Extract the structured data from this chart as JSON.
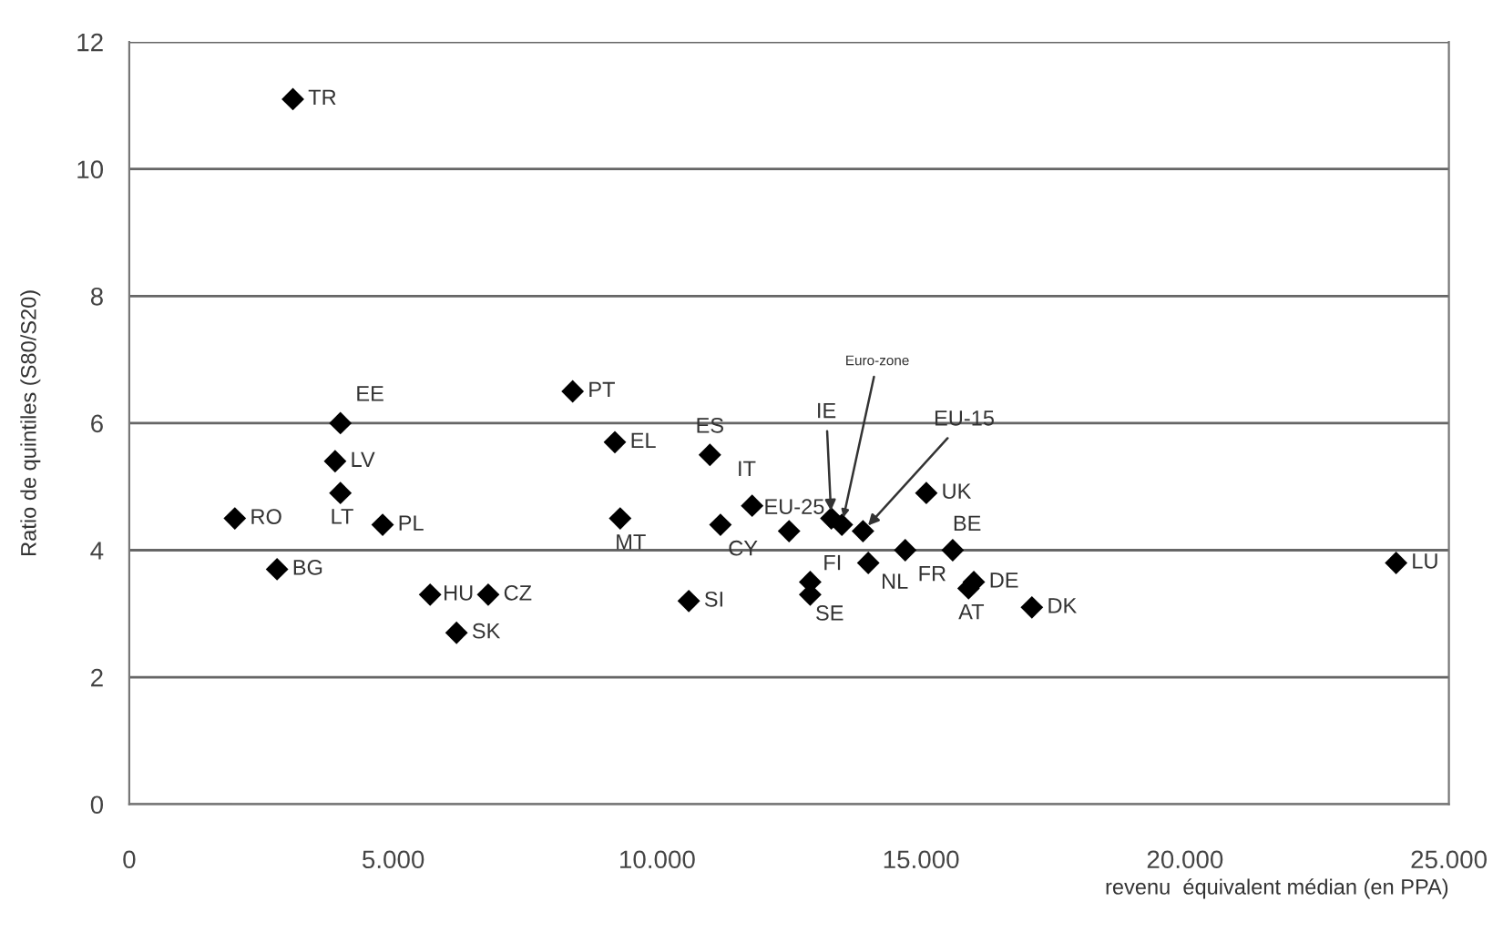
{
  "chart_data": {
    "type": "scatter",
    "xlabel": "revenu  équivalent médian (en PPA)",
    "ylabel": "Ratio de quintiles (S80/S20)",
    "x": [
      3100,
      4000,
      3900,
      4000,
      2000,
      4800,
      2800,
      5700,
      6800,
      6200,
      8400,
      9200,
      9300,
      11000,
      10600,
      11200,
      11800,
      12500,
      13300,
      13500,
      13900,
      14000,
      14700,
      15600,
      15100,
      12900,
      12900,
      16000,
      15900,
      17100,
      24000
    ],
    "values": [
      11.1,
      6.0,
      5.4,
      4.9,
      4.5,
      4.4,
      3.7,
      3.3,
      3.3,
      2.7,
      6.5,
      5.7,
      4.5,
      5.5,
      3.2,
      4.4,
      4.7,
      4.3,
      4.5,
      4.4,
      4.3,
      3.8,
      4.0,
      4.0,
      4.9,
      3.5,
      3.3,
      3.5,
      3.4,
      3.1,
      3.8
    ],
    "color": "#000000",
    "marker": "diamond",
    "annotations": [
      {
        "text": "TR",
        "x": 3100,
        "y": 11.1
      },
      {
        "text": "EE",
        "x": 4000,
        "y": 6.0
      },
      {
        "text": "LV",
        "x": 3900,
        "y": 5.4
      },
      {
        "text": "LT",
        "x": 4000,
        "y": 4.9
      },
      {
        "text": "RO",
        "x": 2000,
        "y": 4.5
      },
      {
        "text": "PL",
        "x": 4800,
        "y": 4.4
      },
      {
        "text": "BG",
        "x": 2800,
        "y": 3.7
      },
      {
        "text": "HU",
        "x": 5700,
        "y": 3.3
      },
      {
        "text": "CZ",
        "x": 6800,
        "y": 3.3
      },
      {
        "text": "SK",
        "x": 6200,
        "y": 2.7
      },
      {
        "text": "PT",
        "x": 8400,
        "y": 6.5
      },
      {
        "text": "EL",
        "x": 9200,
        "y": 5.7
      },
      {
        "text": "MT",
        "x": 9300,
        "y": 4.5
      },
      {
        "text": "ES",
        "x": 11000,
        "y": 5.5
      },
      {
        "text": "SI",
        "x": 10600,
        "y": 3.2
      },
      {
        "text": "CY",
        "x": 11200,
        "y": 4.4
      },
      {
        "text": "IT",
        "x": 11800,
        "y": 4.7
      },
      {
        "text": "EU-25",
        "x": 12500,
        "y": 4.3
      },
      {
        "text": "IE",
        "x": 13300,
        "y": 4.5
      },
      {
        "text": "Euro-zone",
        "x": 13500,
        "y": 4.4
      },
      {
        "text": "EU-15",
        "x": 13900,
        "y": 4.3
      },
      {
        "text": "NL",
        "x": 14000,
        "y": 3.8
      },
      {
        "text": "FR",
        "x": 14700,
        "y": 4.0
      },
      {
        "text": "BE",
        "x": 15600,
        "y": 4.0
      },
      {
        "text": "UK",
        "x": 15100,
        "y": 4.9
      },
      {
        "text": "FI",
        "x": 12900,
        "y": 3.5
      },
      {
        "text": "SE",
        "x": 12900,
        "y": 3.3
      },
      {
        "text": "DE",
        "x": 16000,
        "y": 3.5
      },
      {
        "text": "AT",
        "x": 15900,
        "y": 3.4
      },
      {
        "text": "DK",
        "x": 17100,
        "y": 3.1
      },
      {
        "text": "LU",
        "x": 24000,
        "y": 3.8
      }
    ],
    "xlim": [
      0,
      25000
    ],
    "ylim": [
      0,
      12
    ],
    "xticks": [
      0,
      {
        "value": 5000,
        "label": "5.000"
      },
      {
        "value": 10000,
        "label": "10.000"
      },
      {
        "value": 15000,
        "label": "15.000"
      },
      {
        "value": 20000,
        "label": "20.000"
      },
      {
        "value": 25000,
        "label": "25.000"
      }
    ],
    "yticks": [
      0,
      2,
      4,
      6,
      8,
      10,
      12
    ],
    "grid": "y",
    "legend": false
  }
}
